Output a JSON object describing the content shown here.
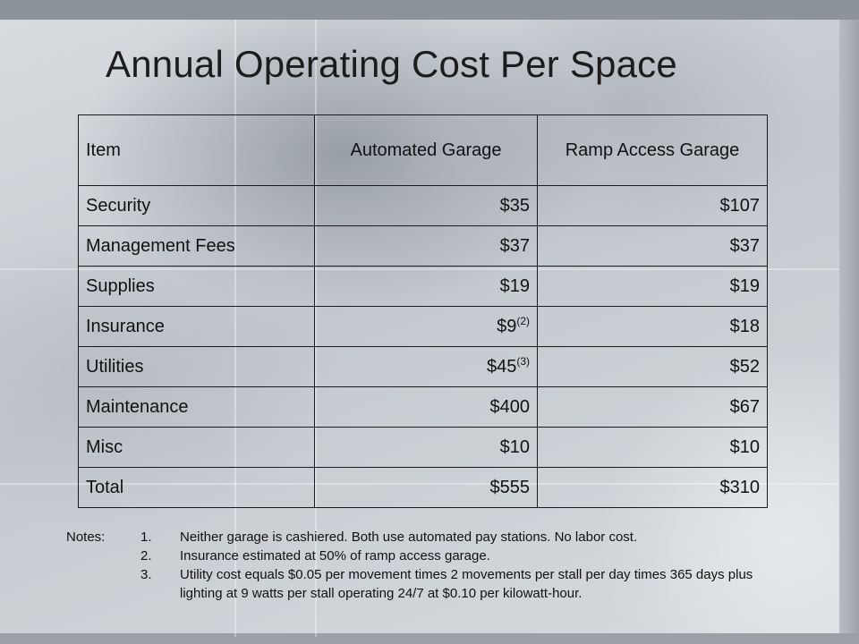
{
  "title": "Annual Operating Cost Per Space",
  "table": {
    "headers": [
      "Item",
      "Automated Garage",
      "Ramp Access Garage"
    ],
    "rows": [
      {
        "item": "Security",
        "automated": "$35",
        "automated_note": "",
        "ramp": "$107"
      },
      {
        "item": "Management Fees",
        "automated": "$37",
        "automated_note": "",
        "ramp": "$37"
      },
      {
        "item": "Supplies",
        "automated": "$19",
        "automated_note": "",
        "ramp": "$19"
      },
      {
        "item": "Insurance",
        "automated": "$9",
        "automated_note": "(2)",
        "ramp": "$18"
      },
      {
        "item": "Utilities",
        "automated": "$45",
        "automated_note": "(3)",
        "ramp": "$52"
      },
      {
        "item": "Maintenance",
        "automated": "$400",
        "automated_note": "",
        "ramp": "$67"
      },
      {
        "item": "Misc",
        "automated": "$10",
        "automated_note": "",
        "ramp": "$10"
      },
      {
        "item": "Total",
        "automated": "$555",
        "automated_note": "",
        "ramp": "$310"
      }
    ]
  },
  "notes": {
    "label": "Notes:",
    "items": [
      {
        "num": "1.",
        "text": "Neither garage is cashiered.  Both use automated pay stations. No labor cost."
      },
      {
        "num": "2.",
        "text": "Insurance estimated at 50% of ramp access garage."
      },
      {
        "num": "3.",
        "text": "Utility cost equals $0.05 per movement times 2 movements per stall per day times 365 days plus lighting at 9 watts per stall operating 24/7 at $0.10 per kilowatt-hour."
      }
    ]
  }
}
